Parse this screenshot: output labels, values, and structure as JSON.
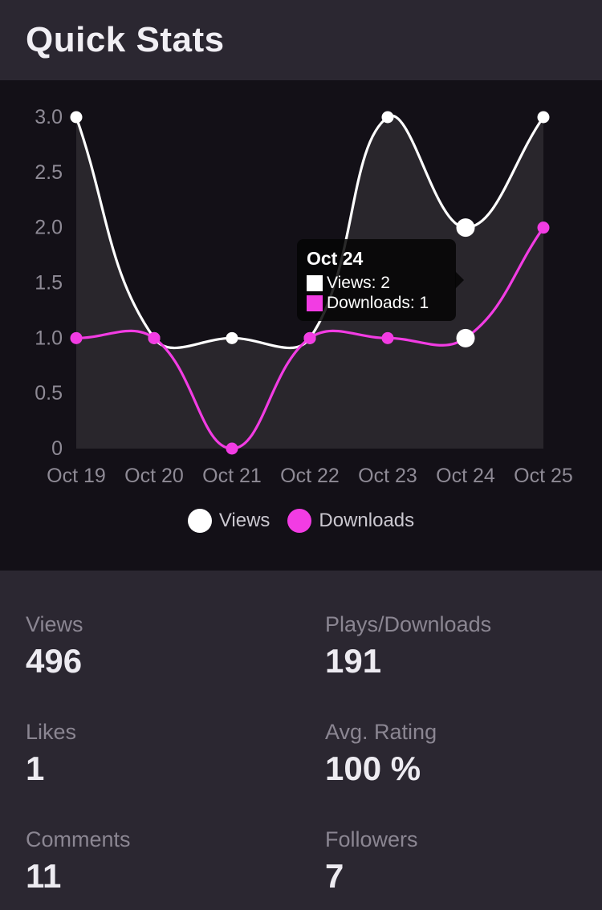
{
  "header": {
    "title": "Quick Stats"
  },
  "chart_data": {
    "type": "line",
    "title": "",
    "xlabel": "",
    "ylabel": "",
    "x": [
      "Oct 19",
      "Oct 20",
      "Oct 21",
      "Oct 22",
      "Oct 23",
      "Oct 24",
      "Oct 25"
    ],
    "series": [
      {
        "name": "Views",
        "color": "#ffffff",
        "values": [
          3,
          1,
          1,
          1,
          3,
          2,
          3
        ]
      },
      {
        "name": "Downloads",
        "color": "#f23ce3",
        "values": [
          1,
          1,
          0,
          1,
          1,
          1,
          2
        ]
      }
    ],
    "ylim": [
      0,
      3
    ],
    "yticks": [
      3.0,
      2.5,
      2.0,
      1.5,
      1.0,
      0.5,
      0
    ],
    "ytick_labels": [
      "3.0",
      "2.5",
      "2.0",
      "1.5",
      "1.0",
      "0.5",
      "0"
    ],
    "grid": false,
    "legend_position": "bottom",
    "area_fill_series_index": 0,
    "active_point_index": 5,
    "tooltip": {
      "title": "Oct 24",
      "rows": [
        {
          "label": "Views: 2",
          "color": "#ffffff"
        },
        {
          "label": "Downloads: 1",
          "color": "#f23ce3"
        }
      ]
    }
  },
  "stats": {
    "items": [
      {
        "label": "Views",
        "value": "496"
      },
      {
        "label": "Plays/Downloads",
        "value": "191"
      },
      {
        "label": "Likes",
        "value": "1"
      },
      {
        "label": "Avg. Rating",
        "value": "100 %"
      },
      {
        "label": "Comments",
        "value": "11"
      },
      {
        "label": "Followers",
        "value": "7"
      }
    ]
  },
  "colors": {
    "panel_bg": "#2b2731",
    "chart_bg": "#131017",
    "area_fill": "#29262c",
    "title_color": "#f1eff4",
    "axis_label": "#8e8a95",
    "legend_text": "#cbc8d0",
    "stat_label": "#8b8692",
    "stat_value": "#edebf1",
    "tooltip_bg": "rgba(5,5,5,0.85)",
    "tooltip_text": "#ffffff",
    "active_point": "#ffffff"
  }
}
